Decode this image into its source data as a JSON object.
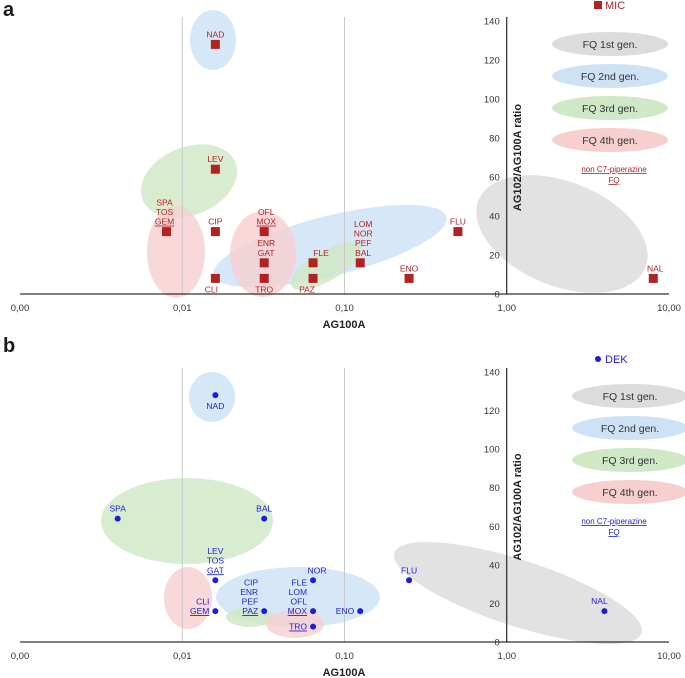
{
  "colors": {
    "red_marker": "#b22222",
    "blue_marker": "#1c1cdc",
    "gen1": "#dcdcdc",
    "gen2": "#cde3f5",
    "gen3": "#cfe8c6",
    "gen4": "#f7cfcf",
    "grid": "#c8c8c8",
    "axis": "#000000"
  },
  "chart_data": [
    {
      "panel": "a",
      "type": "scatter",
      "xscale": "log",
      "xlim": [
        0.001,
        10
      ],
      "xticks": [
        "0,00",
        "0,01",
        "0,10",
        "1,00",
        "10,00"
      ],
      "xlabel": "AG100A",
      "ylabel": "AG102/AG100A ratio",
      "ylim": [
        0,
        140
      ],
      "yticks": [
        "0",
        "20",
        "40",
        "60",
        "80",
        "100",
        "120",
        "140"
      ],
      "marker": "square",
      "legend_marker_label": "MIC",
      "legend": [
        "FQ 1st gen.",
        "FQ 2nd gen.",
        "FQ 3rd gen.",
        "FQ 4th gen."
      ],
      "note": [
        "non C7-piperazine",
        "FQ"
      ],
      "points": [
        {
          "x": 0.016,
          "y": 128,
          "labels": [
            "NAD"
          ],
          "lpos": "above"
        },
        {
          "x": 0.016,
          "y": 64,
          "labels": [
            "LEV"
          ],
          "lpos": "above"
        },
        {
          "x": 0.008,
          "y": 32,
          "labels": [
            "SPA",
            "TOS",
            "GEM"
          ],
          "lpos": "above",
          "ul": [
            2
          ]
        },
        {
          "x": 0.016,
          "y": 32,
          "labels": [
            "CIP"
          ],
          "lpos": "above"
        },
        {
          "x": 0.032,
          "y": 32,
          "labels": [
            "OFL",
            "MOX"
          ],
          "lpos": "above",
          "ul": [
            1
          ]
        },
        {
          "x": 0.032,
          "y": 16,
          "labels": [
            "ENR",
            "GAT"
          ],
          "lpos": "above"
        },
        {
          "x": 0.064,
          "y": 16,
          "labels": [
            "FLE"
          ],
          "lpos": "above"
        },
        {
          "x": 0.125,
          "y": 16,
          "labels": [
            "LOM",
            "NOR",
            "PEF",
            "BAL"
          ],
          "lpos": "above"
        },
        {
          "x": 0.25,
          "y": 8,
          "labels": [
            "ENO"
          ],
          "lpos": "above"
        },
        {
          "x": 0.5,
          "y": 32,
          "labels": [
            "FLU"
          ],
          "lpos": "above"
        },
        {
          "x": 8,
          "y": 8,
          "labels": [
            "NAL"
          ],
          "lpos": "above"
        },
        {
          "x": 0.016,
          "y": 8,
          "labels": [
            "CLI"
          ],
          "lpos": "below"
        },
        {
          "x": 0.032,
          "y": 8,
          "labels": [
            "TRO"
          ],
          "lpos": "below"
        },
        {
          "x": 0.064,
          "y": 8,
          "labels": [
            "PAZ"
          ],
          "lpos": "below"
        }
      ]
    },
    {
      "panel": "b",
      "type": "scatter",
      "xscale": "log",
      "xlim": [
        0.001,
        10
      ],
      "xticks": [
        "0,00",
        "0,01",
        "0,10",
        "1,00",
        "10,00"
      ],
      "xlabel": "AG100A",
      "ylabel": "AG102/AG100A ratio",
      "ylim": [
        0,
        140
      ],
      "yticks": [
        "0",
        "20",
        "40",
        "60",
        "80",
        "100",
        "120",
        "140"
      ],
      "marker": "circle",
      "legend_marker_label": "DEK",
      "legend": [
        "FQ 1st gen.",
        "FQ 2nd gen.",
        "FQ 3rd gen.",
        "FQ 4th gen."
      ],
      "note": [
        "non C7-piperazine",
        "FQ"
      ],
      "points": [
        {
          "x": 0.016,
          "y": 128,
          "labels": [
            "NAD"
          ],
          "lpos": "below"
        },
        {
          "x": 0.004,
          "y": 64,
          "labels": [
            "SPA"
          ],
          "lpos": "above"
        },
        {
          "x": 0.032,
          "y": 64,
          "labels": [
            "BAL"
          ],
          "lpos": "above"
        },
        {
          "x": 0.016,
          "y": 32,
          "labels": [
            "LEV",
            "TOS",
            "GAT"
          ],
          "lpos": "above",
          "ul": [
            2
          ]
        },
        {
          "x": 0.016,
          "y": 16,
          "labels": [
            "CLI",
            "GEM"
          ],
          "lpos": "left",
          "ul": [
            1
          ]
        },
        {
          "x": 0.032,
          "y": 16,
          "labels": [
            "CIP",
            "ENR",
            "PEF",
            "PAZ"
          ],
          "lpos": "left",
          "ul": [
            3
          ]
        },
        {
          "x": 0.064,
          "y": 16,
          "labels": [
            "FLE",
            "LOM",
            "OFL",
            "MOX"
          ],
          "lpos": "left",
          "ul": [
            3
          ]
        },
        {
          "x": 0.064,
          "y": 32,
          "labels": [
            "NOR"
          ],
          "lpos": "above"
        },
        {
          "x": 0.125,
          "y": 16,
          "labels": [
            "ENO"
          ],
          "lpos": "left"
        },
        {
          "x": 0.25,
          "y": 32,
          "labels": [
            "FLU"
          ],
          "lpos": "above"
        },
        {
          "x": 4,
          "y": 16,
          "labels": [
            "NAL"
          ],
          "lpos": "above"
        },
        {
          "x": 0.064,
          "y": 8,
          "labels": [
            "TRO"
          ],
          "lpos": "left",
          "ul": [
            0
          ]
        }
      ]
    }
  ]
}
